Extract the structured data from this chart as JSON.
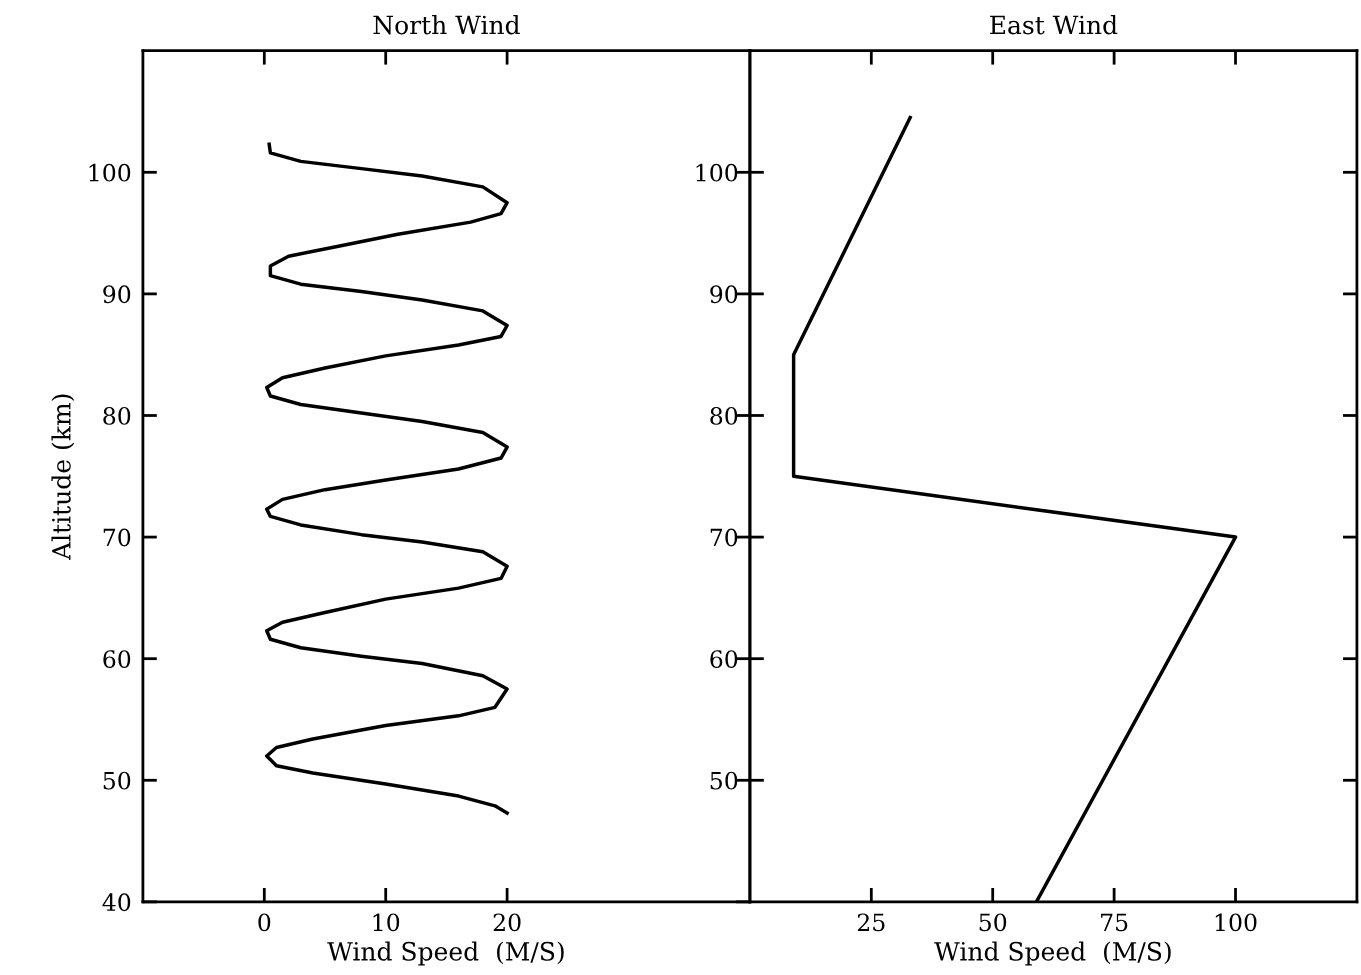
{
  "chart_data": [
    {
      "type": "line",
      "title": "North Wind",
      "xlabel": "Wind Speed  (M/S)",
      "ylabel": "Altitude (km)",
      "xlim": [
        -10,
        40
      ],
      "xticks": [
        0,
        10,
        20
      ],
      "ylim": [
        40,
        110
      ],
      "yticks": [
        40,
        50,
        60,
        70,
        80,
        90,
        100
      ],
      "grid": false,
      "marker": "none",
      "line_style": "solid",
      "series": [
        {
          "color": "#000000",
          "x": [
            20,
            19,
            16,
            10,
            4,
            1,
            0.2,
            1,
            4,
            10,
            16,
            19,
            20,
            18,
            13,
            8,
            3,
            0.5,
            0.2,
            1.5,
            5,
            10,
            16,
            19.5,
            20,
            18,
            13,
            8,
            3,
            0.5,
            0.2,
            1.5,
            5,
            10,
            16,
            19.5,
            20,
            18,
            13,
            8,
            3,
            0.5,
            0.2,
            1.5,
            5,
            10,
            16,
            19.5,
            20,
            18,
            13,
            8,
            3,
            0.5,
            0.5,
            2,
            6,
            11,
            17,
            19.5,
            20,
            18,
            13,
            8,
            3,
            0.5,
            0.4
          ],
          "values": [
            47.3,
            47.9,
            48.7,
            49.7,
            50.6,
            51.2,
            52.0,
            52.7,
            53.4,
            54.5,
            55.3,
            56.0,
            57.5,
            58.6,
            59.6,
            60.2,
            60.9,
            61.6,
            62.3,
            63.0,
            63.8,
            64.9,
            65.8,
            66.6,
            67.6,
            68.8,
            69.6,
            70.2,
            71.0,
            71.7,
            72.3,
            73.1,
            73.9,
            74.7,
            75.6,
            76.5,
            77.4,
            78.6,
            79.5,
            80.2,
            80.9,
            81.6,
            82.3,
            83.1,
            83.9,
            84.9,
            85.8,
            86.5,
            87.4,
            88.6,
            89.5,
            90.2,
            90.8,
            91.5,
            92.3,
            93.1,
            93.9,
            94.9,
            95.9,
            96.6,
            97.5,
            98.8,
            99.7,
            100.3,
            100.9,
            101.6,
            102.3
          ]
        }
      ]
    },
    {
      "type": "line",
      "title": "East Wind",
      "xlabel": "Wind Speed  (M/S)",
      "xlim": [
        0,
        125
      ],
      "xticks": [
        25,
        50,
        75,
        100
      ],
      "ylim": [
        40,
        110
      ],
      "yticks": [
        50,
        60,
        70,
        80,
        90,
        100
      ],
      "grid": false,
      "marker": "none",
      "line_style": "solid",
      "series": [
        {
          "color": "#000000",
          "x": [
            59,
            100,
            9,
            9,
            33
          ],
          "values": [
            40,
            70,
            75,
            85,
            104.5
          ]
        }
      ]
    }
  ]
}
